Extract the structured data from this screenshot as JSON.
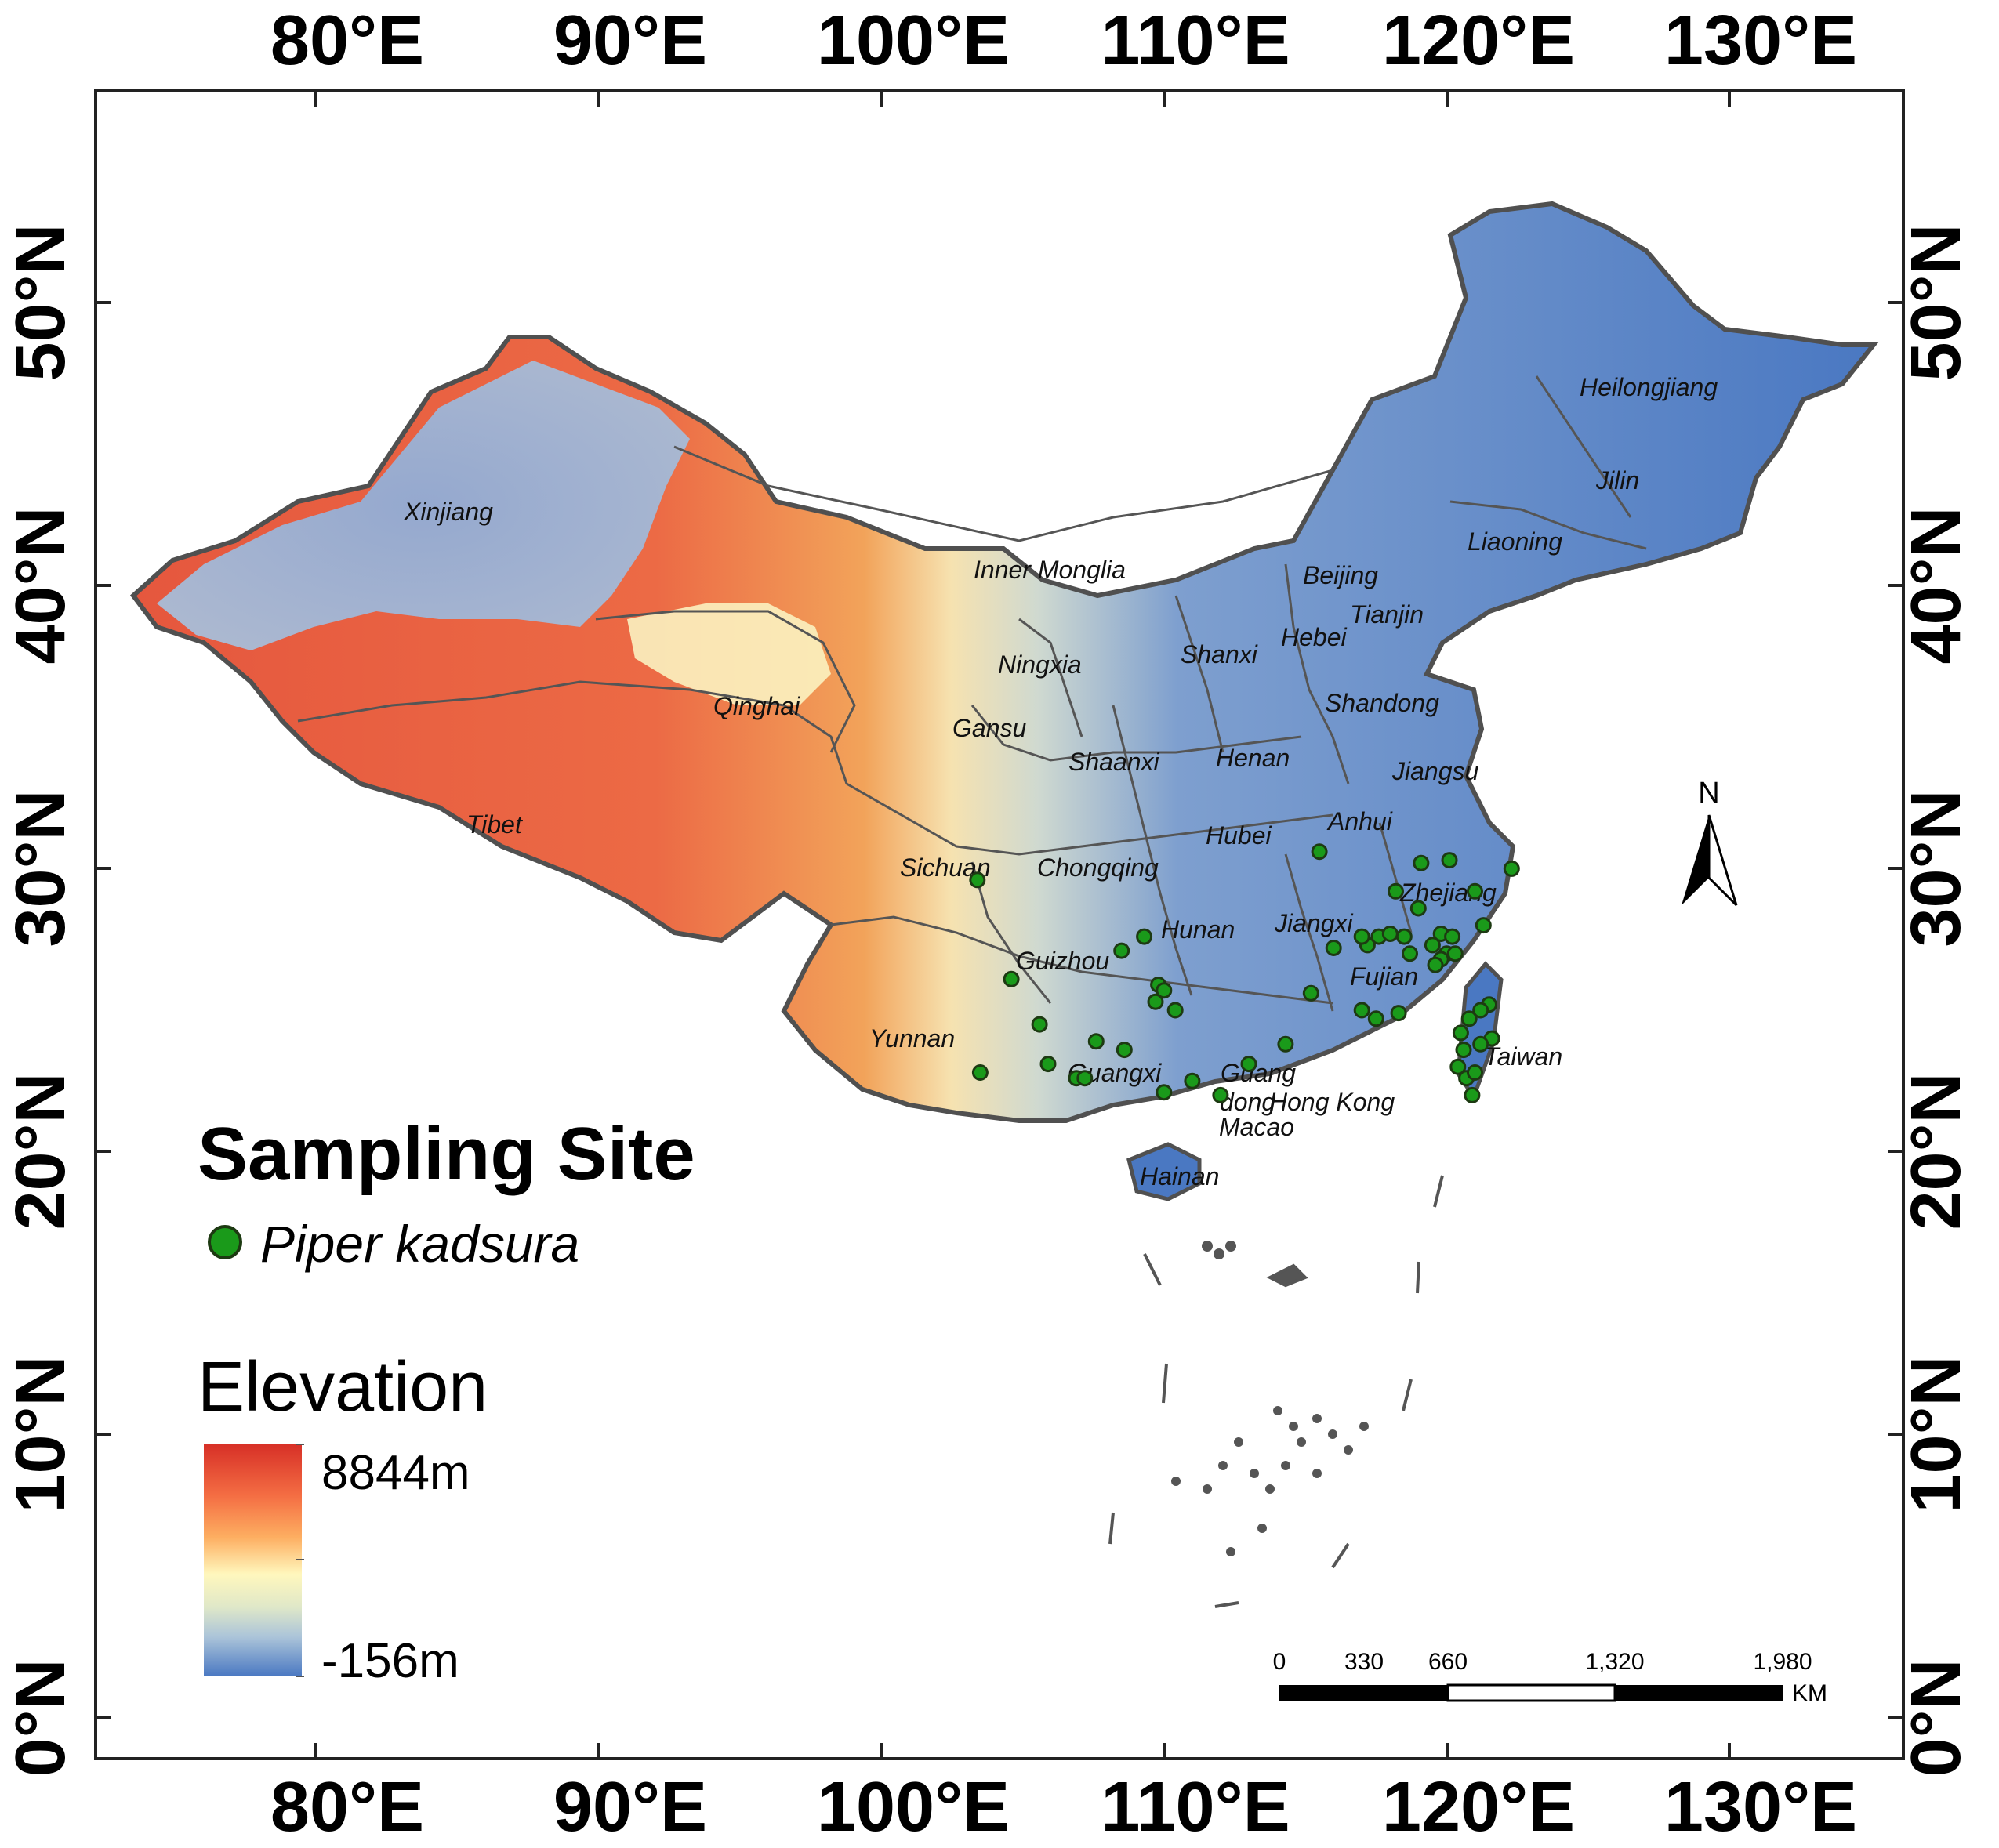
{
  "axes": {
    "lon_labels": [
      "80°E",
      "90°E",
      "100°E",
      "110°E",
      "120°E",
      "130°E"
    ],
    "lat_labels": [
      "0°N",
      "10°N",
      "20°N",
      "30°N",
      "40°N",
      "50°N"
    ]
  },
  "provinces": [
    "Xinjiang",
    "Tibet",
    "Qinghai",
    "Gansu",
    "Inner Monglia",
    "Ningxia",
    "Shanxi",
    "Beijing",
    "Tianjin",
    "Hebei",
    "Shandong",
    "Henan",
    "Shaanxi",
    "Sichuan",
    "Chongqing",
    "Hubei",
    "Anhui",
    "Jiangsu",
    "Zhejiang",
    "Jiangxi",
    "Hunan",
    "Guizhou",
    "Yunnan",
    "Guangxi",
    "Guang",
    "dong",
    "Fujian",
    "Taiwan",
    "Hong Kong",
    "Macao",
    "Hainan",
    "Heilongjiang",
    "Jilin",
    "Liaoning"
  ],
  "sampling": {
    "title": "Sampling Site",
    "species": "Piper kadsura",
    "color": "#1a9a1a",
    "sites": [
      [
        103.4,
        29.6
      ],
      [
        115.5,
        30.6
      ],
      [
        118.2,
        29.2
      ],
      [
        119.1,
        30.2
      ],
      [
        120.1,
        30.3
      ],
      [
        121.0,
        29.2
      ],
      [
        122.3,
        30.0
      ],
      [
        119.0,
        28.6
      ],
      [
        121.3,
        28.0
      ],
      [
        117.2,
        27.3
      ],
      [
        117.6,
        27.6
      ],
      [
        118.0,
        27.7
      ],
      [
        118.5,
        27.6
      ],
      [
        117.0,
        27.6
      ],
      [
        116.0,
        27.2
      ],
      [
        118.7,
        27.0
      ],
      [
        119.5,
        27.3
      ],
      [
        119.8,
        27.7
      ],
      [
        120.2,
        27.6
      ],
      [
        120.0,
        27.0
      ],
      [
        119.8,
        26.8
      ],
      [
        120.3,
        27.0
      ],
      [
        119.6,
        26.6
      ],
      [
        115.2,
        25.6
      ],
      [
        117.0,
        25.0
      ],
      [
        117.5,
        24.7
      ],
      [
        118.3,
        24.9
      ],
      [
        108.5,
        27.1
      ],
      [
        109.3,
        27.6
      ],
      [
        104.6,
        26.1
      ],
      [
        109.8,
        25.9
      ],
      [
        110.0,
        25.7
      ],
      [
        109.7,
        25.3
      ],
      [
        110.4,
        25.0
      ],
      [
        105.6,
        24.5
      ],
      [
        107.6,
        23.9
      ],
      [
        108.6,
        23.6
      ],
      [
        105.9,
        23.1
      ],
      [
        106.9,
        22.6
      ],
      [
        107.2,
        22.6
      ],
      [
        110.0,
        22.1
      ],
      [
        111.0,
        22.5
      ],
      [
        112.0,
        22.0
      ],
      [
        113.0,
        23.1
      ],
      [
        114.3,
        23.8
      ],
      [
        103.5,
        22.8
      ],
      [
        121.5,
        25.2
      ],
      [
        121.2,
        25.0
      ],
      [
        120.8,
        24.7
      ],
      [
        121.6,
        24.0
      ],
      [
        120.5,
        24.2
      ],
      [
        120.6,
        23.6
      ],
      [
        121.2,
        23.8
      ],
      [
        120.4,
        23.0
      ],
      [
        120.7,
        22.6
      ],
      [
        121.0,
        22.8
      ],
      [
        120.9,
        22.0
      ]
    ]
  },
  "elevation": {
    "title": "Elevation",
    "max_label": "8844m",
    "min_label": "-156m",
    "colors": [
      "#d73027",
      "#f46d43",
      "#fdae61",
      "#fff7bd",
      "#e0e8c8",
      "#abc4d9",
      "#6f9ad0",
      "#4a78c2"
    ]
  },
  "scale_bar": {
    "ticks": [
      "0",
      "330",
      "660",
      "1,320",
      "1,980"
    ],
    "unit": "KM"
  },
  "north_arrow": {
    "label": "N"
  },
  "colors": {
    "lowland": "#4a78c2",
    "highland": "#e8553c",
    "border": "#505050"
  }
}
